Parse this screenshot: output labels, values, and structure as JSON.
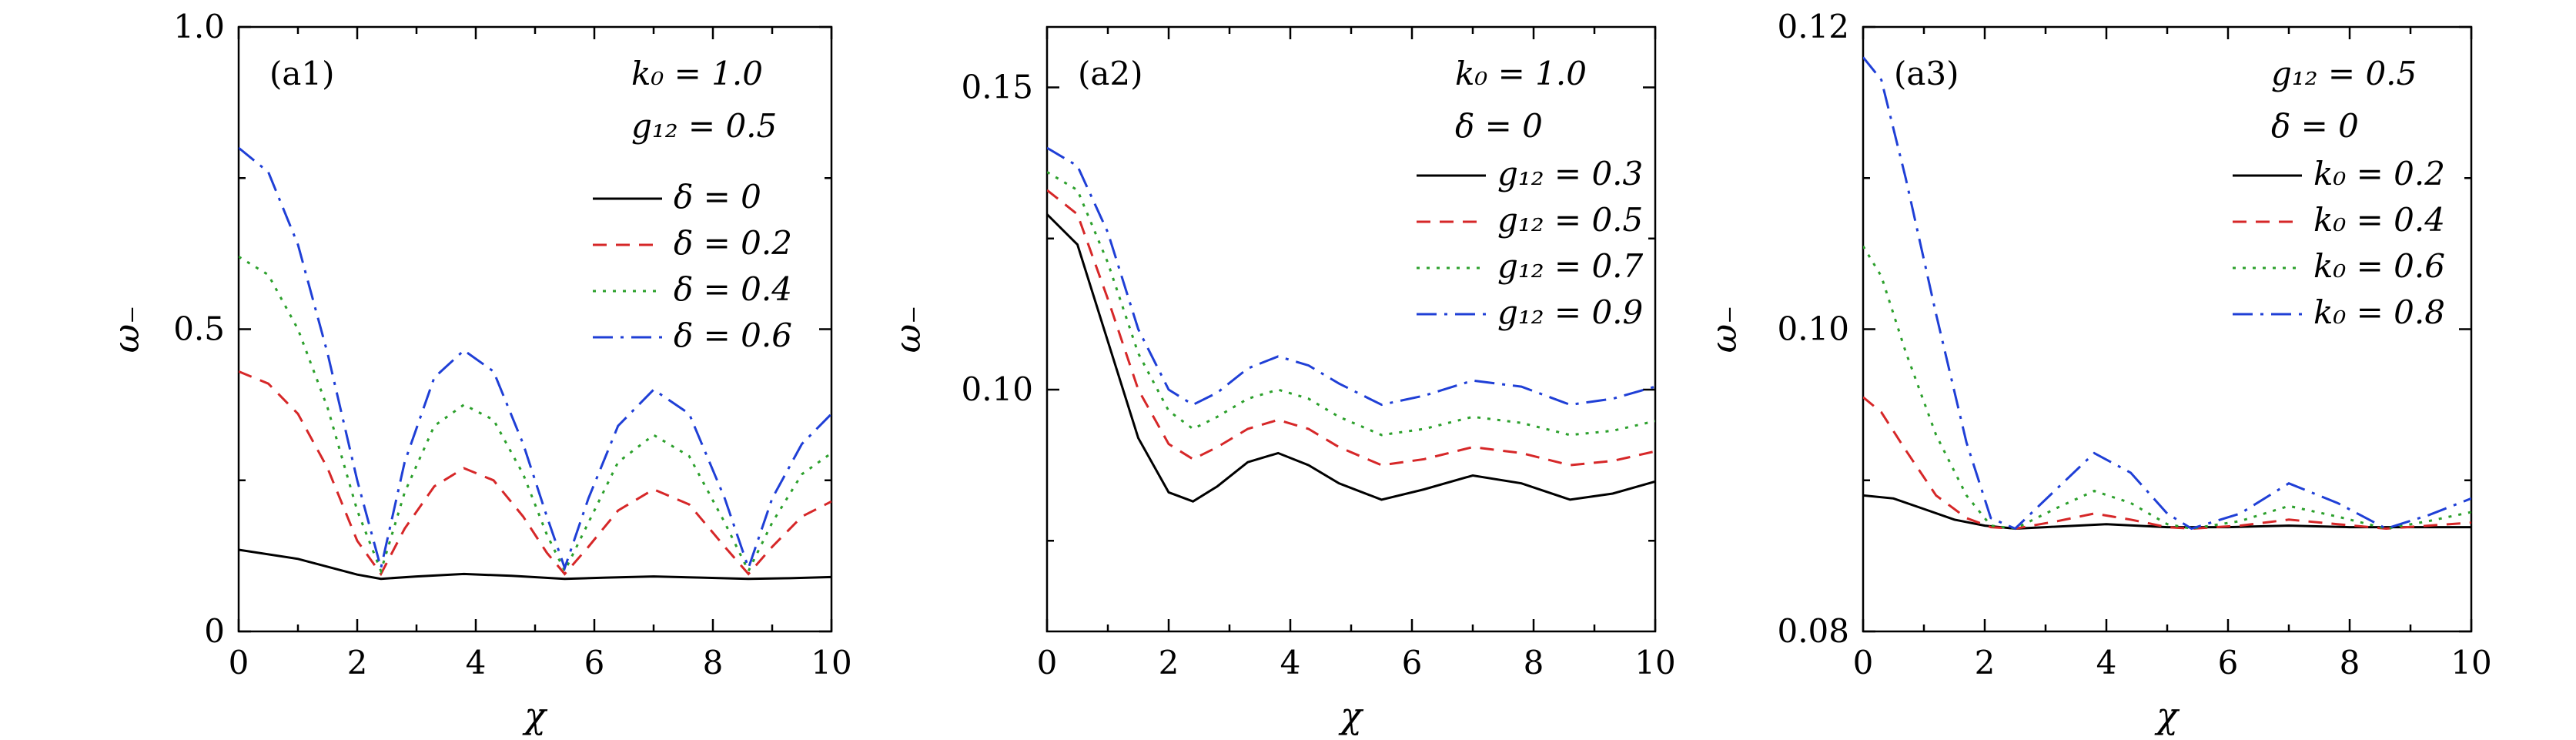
{
  "chart_data": [
    {
      "type": "line",
      "panel_label": "(a1)",
      "xlabel": "χ",
      "ylabel": "ω₋",
      "xlim": [
        0,
        10
      ],
      "ylim": [
        0,
        1.0
      ],
      "xticks": [
        0,
        2,
        4,
        6,
        8,
        10
      ],
      "yticks": [
        0,
        0.5,
        1.0
      ],
      "ytick_labels": [
        "0",
        "0.5",
        "1.0"
      ],
      "yminor": [
        0.25,
        0.75
      ],
      "annotations": [
        "k₀ = 1.0",
        "g₁₂ = 0.5"
      ],
      "legend_position": "right",
      "series": [
        {
          "name": "δ = 0",
          "color": "#000000",
          "dash": "solid",
          "x": [
            0,
            1,
            2,
            2.4,
            3,
            3.8,
            4.6,
            5.5,
            6.2,
            7.0,
            7.8,
            8.6,
            9.3,
            10
          ],
          "y": [
            0.135,
            0.12,
            0.094,
            0.087,
            0.091,
            0.095,
            0.092,
            0.087,
            0.089,
            0.091,
            0.089,
            0.087,
            0.088,
            0.09
          ]
        },
        {
          "name": "δ = 0.2",
          "color": "#d62728",
          "dash": "dash",
          "x": [
            0,
            0.5,
            1,
            1.5,
            2,
            2.4,
            2.8,
            3.3,
            3.8,
            4.3,
            4.8,
            5.2,
            5.5,
            5.9,
            6.4,
            7.0,
            7.6,
            8.2,
            8.6,
            9.0,
            9.5,
            10
          ],
          "y": [
            0.43,
            0.41,
            0.36,
            0.27,
            0.15,
            0.095,
            0.17,
            0.24,
            0.27,
            0.25,
            0.19,
            0.13,
            0.095,
            0.14,
            0.2,
            0.235,
            0.21,
            0.14,
            0.095,
            0.14,
            0.19,
            0.215
          ]
        },
        {
          "name": "δ = 0.4",
          "color": "#2ca02c",
          "dash": "dot",
          "x": [
            0,
            0.5,
            1,
            1.5,
            2,
            2.4,
            2.8,
            3.3,
            3.8,
            4.3,
            4.8,
            5.2,
            5.5,
            5.9,
            6.4,
            7.0,
            7.6,
            8.2,
            8.6,
            9.0,
            9.5,
            10
          ],
          "y": [
            0.62,
            0.59,
            0.5,
            0.37,
            0.2,
            0.1,
            0.23,
            0.34,
            0.375,
            0.35,
            0.26,
            0.16,
            0.1,
            0.18,
            0.28,
            0.325,
            0.29,
            0.18,
            0.1,
            0.18,
            0.26,
            0.295
          ]
        },
        {
          "name": "δ = 0.6",
          "color": "#1f3fd6",
          "dash": "dashdot",
          "x": [
            0,
            0.5,
            1,
            1.5,
            2,
            2.4,
            2.8,
            3.3,
            3.8,
            4.3,
            4.8,
            5.2,
            5.5,
            5.9,
            6.4,
            7.0,
            7.6,
            8.2,
            8.6,
            9.0,
            9.5,
            10
          ],
          "y": [
            0.8,
            0.76,
            0.64,
            0.46,
            0.25,
            0.105,
            0.28,
            0.42,
            0.465,
            0.43,
            0.31,
            0.19,
            0.105,
            0.22,
            0.34,
            0.4,
            0.36,
            0.22,
            0.105,
            0.22,
            0.31,
            0.36
          ]
        }
      ]
    },
    {
      "type": "line",
      "panel_label": "(a2)",
      "xlabel": "χ",
      "ylabel": "ω₋",
      "xlim": [
        0,
        10
      ],
      "ylim": [
        0.06,
        0.16
      ],
      "xticks": [
        0,
        2,
        4,
        6,
        8,
        10
      ],
      "yticks": [
        0.1,
        0.15
      ],
      "ytick_labels": [
        "0.10",
        "0.15"
      ],
      "yminor": [
        0.075,
        0.125
      ],
      "annotations": [
        "k₀ = 1.0",
        "δ = 0"
      ],
      "legend_position": "right",
      "series": [
        {
          "name": "g₁₂ = 0.3",
          "color": "#000000",
          "dash": "solid",
          "x": [
            0,
            0.5,
            1,
            1.5,
            2,
            2.4,
            2.8,
            3.3,
            3.8,
            4.3,
            4.8,
            5.5,
            6.2,
            7.0,
            7.8,
            8.6,
            9.3,
            10
          ],
          "y": [
            0.129,
            0.124,
            0.108,
            0.092,
            0.083,
            0.0815,
            0.084,
            0.088,
            0.0895,
            0.0875,
            0.0845,
            0.0818,
            0.0835,
            0.0858,
            0.0845,
            0.0818,
            0.0828,
            0.0848
          ]
        },
        {
          "name": "g₁₂ = 0.5",
          "color": "#d62728",
          "dash": "dash",
          "x": [
            0,
            0.5,
            1,
            1.5,
            2,
            2.4,
            2.8,
            3.3,
            3.8,
            4.3,
            4.8,
            5.5,
            6.2,
            7.0,
            7.8,
            8.6,
            9.3,
            10
          ],
          "y": [
            0.133,
            0.129,
            0.115,
            0.1,
            0.091,
            0.0885,
            0.0905,
            0.0935,
            0.095,
            0.0935,
            0.0905,
            0.0875,
            0.0885,
            0.0905,
            0.0895,
            0.0875,
            0.0882,
            0.0898
          ]
        },
        {
          "name": "g₁₂ = 0.7",
          "color": "#2ca02c",
          "dash": "dot",
          "x": [
            0,
            0.5,
            1,
            1.5,
            2,
            2.4,
            2.8,
            3.3,
            3.8,
            4.3,
            4.8,
            5.5,
            6.2,
            7.0,
            7.8,
            8.6,
            9.3,
            10
          ],
          "y": [
            0.136,
            0.133,
            0.121,
            0.106,
            0.0965,
            0.0935,
            0.0955,
            0.0985,
            0.1,
            0.0985,
            0.0955,
            0.0925,
            0.0935,
            0.0955,
            0.0945,
            0.0925,
            0.0932,
            0.0948
          ]
        },
        {
          "name": "g₁₂ = 0.9",
          "color": "#1f3fd6",
          "dash": "dashdot",
          "x": [
            0,
            0.5,
            1,
            1.5,
            2,
            2.4,
            2.8,
            3.3,
            3.8,
            4.3,
            4.8,
            5.5,
            6.2,
            7.0,
            7.8,
            8.6,
            9.3,
            10
          ],
          "y": [
            0.14,
            0.137,
            0.126,
            0.11,
            0.1,
            0.0975,
            0.0995,
            0.1035,
            0.1055,
            0.104,
            0.101,
            0.0975,
            0.099,
            0.1015,
            0.1005,
            0.0975,
            0.0985,
            0.1005
          ]
        }
      ]
    },
    {
      "type": "line",
      "panel_label": "(a3)",
      "xlabel": "χ",
      "ylabel": "ω₋",
      "xlim": [
        0,
        10
      ],
      "ylim": [
        0.08,
        0.12
      ],
      "xticks": [
        0,
        2,
        4,
        6,
        8,
        10
      ],
      "yticks": [
        0.08,
        0.1,
        0.12
      ],
      "ytick_labels": [
        "0.08",
        "0.10",
        "0.12"
      ],
      "yminor": [
        0.09,
        0.11
      ],
      "annotations": [
        "g₁₂ = 0.5",
        "δ = 0"
      ],
      "legend_position": "right",
      "series": [
        {
          "name": "k₀ = 0.2",
          "color": "#000000",
          "dash": "solid",
          "x": [
            0,
            0.5,
            1,
            1.5,
            2,
            2.5,
            3,
            4,
            5,
            6,
            7,
            8,
            9,
            10
          ],
          "y": [
            0.089,
            0.0888,
            0.0881,
            0.0874,
            0.087,
            0.0868,
            0.0869,
            0.0871,
            0.0869,
            0.0869,
            0.087,
            0.0869,
            0.0869,
            0.0869
          ]
        },
        {
          "name": "k₀ = 0.4",
          "color": "#d62728",
          "dash": "dash",
          "x": [
            0,
            0.3,
            0.7,
            1.2,
            1.7,
            2.1,
            2.5,
            3.2,
            3.8,
            4.4,
            5.0,
            5.4,
            6.2,
            7.0,
            7.8,
            8.6,
            9.3,
            10
          ],
          "y": [
            0.0955,
            0.0945,
            0.092,
            0.089,
            0.0875,
            0.0869,
            0.0868,
            0.0873,
            0.0878,
            0.0874,
            0.0869,
            0.0868,
            0.087,
            0.0874,
            0.0871,
            0.0868,
            0.087,
            0.0872
          ]
        },
        {
          "name": "k₀ = 0.6",
          "color": "#2ca02c",
          "dash": "dot",
          "x": [
            0,
            0.3,
            0.7,
            1.2,
            1.7,
            2.1,
            2.5,
            3.2,
            3.8,
            4.4,
            5.0,
            5.4,
            6.2,
            7.0,
            7.8,
            8.6,
            9.3,
            10
          ],
          "y": [
            0.1055,
            0.1035,
            0.0985,
            0.093,
            0.089,
            0.087,
            0.0868,
            0.0882,
            0.0893,
            0.0885,
            0.0871,
            0.0868,
            0.0873,
            0.0883,
            0.0876,
            0.0868,
            0.0873,
            0.0879
          ]
        },
        {
          "name": "k₀ = 0.8",
          "color": "#1f3fd6",
          "dash": "dashdot",
          "x": [
            0,
            0.3,
            0.7,
            1.2,
            1.7,
            2.1,
            2.5,
            3.2,
            3.8,
            4.4,
            5.0,
            5.4,
            6.2,
            7.0,
            7.8,
            8.6,
            9.3,
            10
          ],
          "y": [
            0.118,
            0.1165,
            0.11,
            0.101,
            0.0925,
            0.0875,
            0.0868,
            0.0895,
            0.0918,
            0.0905,
            0.0878,
            0.0868,
            0.0878,
            0.0898,
            0.0885,
            0.0868,
            0.0877,
            0.0888
          ]
        }
      ]
    }
  ]
}
